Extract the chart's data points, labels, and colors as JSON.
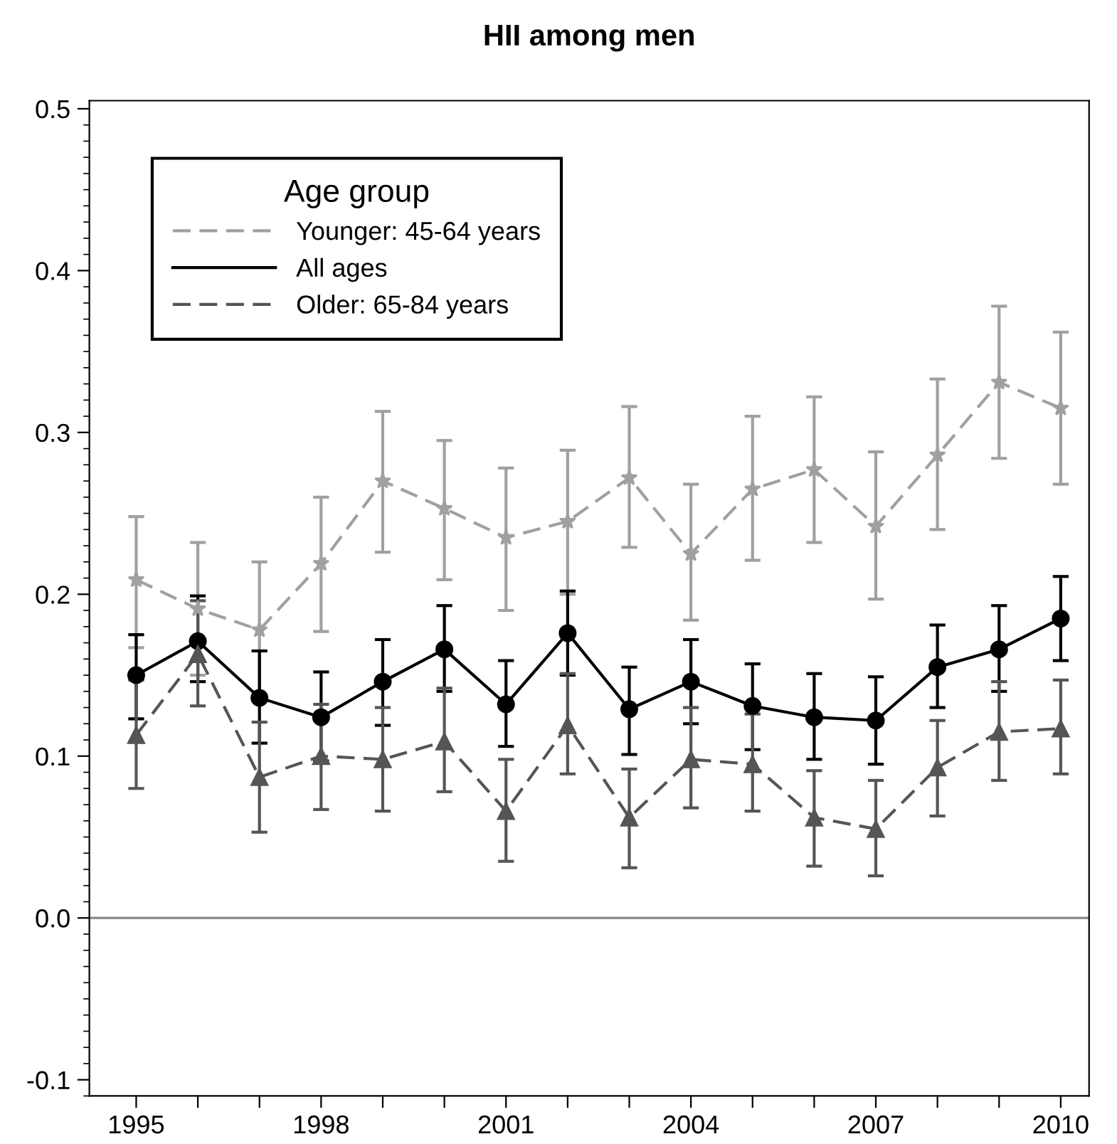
{
  "chart_data": {
    "type": "line",
    "title": "HII among men",
    "legend_title": "Age group",
    "legend": "top left",
    "grid": false,
    "x": [
      1995,
      1996,
      1997,
      1998,
      1999,
      2000,
      2001,
      2002,
      2003,
      2004,
      2005,
      2006,
      2007,
      2008,
      2009,
      2010
    ],
    "xlim": [
      1994.24,
      2010.46
    ],
    "xticks": [
      1995,
      {
        "value": 1996,
        "label": null
      },
      {
        "value": 1997,
        "label": null
      },
      1998,
      {
        "value": 1999,
        "label": null
      },
      {
        "value": 2000,
        "label": null
      },
      2001,
      {
        "value": 2002,
        "label": null
      },
      {
        "value": 2003,
        "label": null
      },
      2004,
      {
        "value": 2005,
        "label": null
      },
      {
        "value": 2006,
        "label": null
      },
      2007,
      {
        "value": 2008,
        "label": null
      },
      {
        "value": 2009,
        "label": null
      },
      2010
    ],
    "ylim": [
      -0.11,
      0.505
    ],
    "yticks": [
      {
        "value": -0.1,
        "label": "-0.1"
      },
      {
        "value": 0.0,
        "label": "0.0"
      },
      0.1,
      0.2,
      0.3,
      0.4,
      0.5
    ],
    "ref_lines": [
      {
        "axis": "y",
        "value": 0,
        "label": null,
        "color": "#909090",
        "line_style": "solid"
      }
    ],
    "series": [
      {
        "name": "Younger: 45-64 years",
        "color": "#a0a0a0",
        "marker": "star",
        "line_style": "dashed",
        "values": [
          0.209,
          0.191,
          0.178,
          0.219,
          0.27,
          0.253,
          0.235,
          0.245,
          0.272,
          0.225,
          0.265,
          0.277,
          0.242,
          0.286,
          0.331,
          0.315
        ],
        "errors": [
          [
            0.167,
            0.248
          ],
          [
            0.15,
            0.232
          ],
          0.042,
          [
            0.177,
            0.26
          ],
          [
            0.226,
            0.313
          ],
          [
            0.209,
            0.295
          ],
          [
            0.19,
            0.278
          ],
          [
            0.2,
            0.289
          ],
          [
            0.229,
            0.316
          ],
          [
            0.184,
            0.268
          ],
          [
            0.221,
            0.31
          ],
          [
            0.232,
            0.322
          ],
          [
            0.197,
            0.288
          ],
          [
            0.24,
            0.333
          ],
          [
            0.284,
            0.378
          ],
          [
            0.268,
            0.362
          ]
        ]
      },
      {
        "name": "All ages",
        "color": "#000000",
        "marker": "circle",
        "line_style": "solid",
        "values": [
          0.15,
          0.171,
          0.136,
          0.124,
          0.146,
          0.166,
          0.132,
          0.176,
          0.129,
          0.146,
          0.131,
          0.124,
          0.122,
          0.155,
          0.166,
          0.185
        ],
        "errors": [
          [
            0.123,
            0.175
          ],
          [
            0.146,
            0.199
          ],
          [
            0.108,
            0.165
          ],
          [
            0.097,
            0.152
          ],
          [
            0.119,
            0.172
          ],
          [
            0.14,
            0.193
          ],
          [
            0.106,
            0.159
          ],
          [
            0.15,
            0.202
          ],
          [
            0.101,
            0.155
          ],
          [
            0.12,
            0.172
          ],
          [
            0.104,
            0.157
          ],
          [
            0.098,
            0.151
          ],
          [
            0.095,
            0.149
          ],
          [
            0.13,
            0.181
          ],
          [
            0.14,
            0.193
          ],
          [
            0.159,
            0.211
          ]
        ]
      },
      {
        "name": "Older: 65-84 years",
        "color": "#555555",
        "marker": "triangle",
        "line_style": "dashed",
        "values": [
          0.113,
          0.163,
          0.087,
          0.1,
          0.098,
          0.109,
          0.066,
          0.119,
          0.062,
          0.098,
          0.095,
          0.062,
          0.055,
          0.093,
          0.115,
          0.117
        ],
        "errors": [
          [
            0.08,
            0.147
          ],
          [
            0.131,
            0.196
          ],
          [
            0.053,
            0.121
          ],
          [
            0.067,
            0.132
          ],
          [
            0.066,
            0.13
          ],
          [
            0.078,
            0.142
          ],
          [
            0.035,
            0.098
          ],
          [
            0.089,
            0.151
          ],
          [
            0.031,
            0.092
          ],
          [
            0.068,
            0.13
          ],
          [
            0.066,
            0.126
          ],
          [
            0.032,
            0.091
          ],
          [
            0.026,
            0.085
          ],
          [
            0.063,
            0.122
          ],
          [
            0.085,
            0.146
          ],
          [
            0.089,
            0.147
          ]
        ]
      }
    ]
  }
}
